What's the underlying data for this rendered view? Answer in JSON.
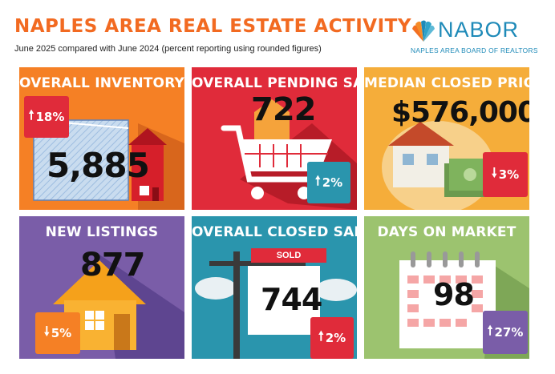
{
  "header": {
    "title": "NAPLES AREA REAL ESTATE ACTIVITY",
    "subtitle": "June 2025 compared with June 2024 (percent reporting using rounded figures)"
  },
  "logo": {
    "name": "NABOR",
    "tagline": "NAPLES AREA BOARD OF REALTORS"
  },
  "colors": {
    "orange": "#f58025",
    "red": "#e02b3a",
    "gold": "#f5ad3a",
    "purple": "#7a5da8",
    "teal": "#2a95ad",
    "green": "#9cc36f"
  },
  "tiles": [
    {
      "label": "OVERALL INVENTORY",
      "value": "5,885",
      "change_dir": "up",
      "arrow": "🠕",
      "change": "18%"
    },
    {
      "label": "OVERALL PENDING SALES",
      "value": "722",
      "change_dir": "up",
      "arrow": "🠕",
      "change": "2%"
    },
    {
      "label": "MEDIAN CLOSED PRICE",
      "value": "$576,000",
      "change_dir": "down",
      "arrow": "🠗",
      "change": "3%"
    },
    {
      "label": "NEW LISTINGS",
      "value": "877",
      "change_dir": "down",
      "arrow": "🠗",
      "change": "5%"
    },
    {
      "label": "OVERALL CLOSED SALES",
      "value": "744",
      "sign": "SOLD",
      "change_dir": "up",
      "arrow": "🠕",
      "change": "2%"
    },
    {
      "label": "DAYS ON MARKET",
      "value": "98",
      "change_dir": "up",
      "arrow": "🠕",
      "change": "27%"
    }
  ]
}
